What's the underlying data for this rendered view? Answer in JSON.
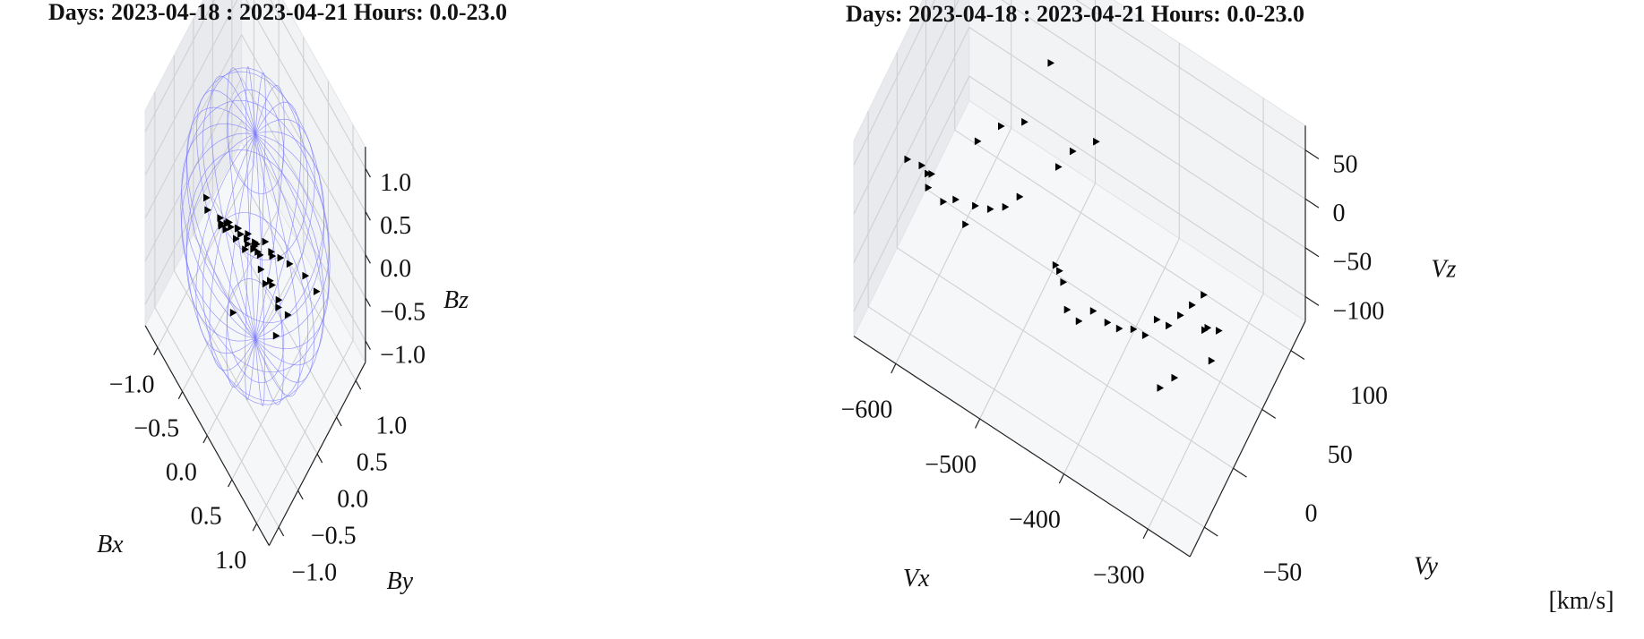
{
  "chart_data": [
    {
      "type": "scatter",
      "subtype": "3d-scatter",
      "title": "Days: 2023-04-18 : 2023-04-21 Hours: 0.0-23.0",
      "xlabel": "Bx",
      "ylabel": "By",
      "zlabel": "Bz",
      "xlim": [
        -1.2,
        1.2
      ],
      "ylim": [
        -1.2,
        1.2
      ],
      "zlim": [
        -1.2,
        1.2
      ],
      "xticks": [
        "−1.0",
        "−0.5",
        "0.0",
        "0.5",
        "1.0"
      ],
      "yticks": [
        "−1.0",
        "−0.5",
        "0.0",
        "0.5",
        "1.0"
      ],
      "zticks": [
        "−1.0",
        "−0.5",
        "0.0",
        "0.5",
        "1.0"
      ],
      "grid": true,
      "marker": "triangle-right",
      "marker_color": "#000000",
      "reference_sphere": {
        "radius": 1.0,
        "color": "#7a7aff"
      },
      "series": [
        {
          "points": [
            {
              "x": -0.05,
              "y": -0.55,
              "z": 0.52
            },
            {
              "x": 0.1,
              "y": -0.5,
              "z": 0.55
            },
            {
              "x": 0.3,
              "y": -0.4,
              "z": 0.58
            },
            {
              "x": 0.5,
              "y": -0.25,
              "z": 0.55
            },
            {
              "x": 0.7,
              "y": -0.05,
              "z": 0.45
            },
            {
              "x": 0.85,
              "y": 0.15,
              "z": 0.3
            },
            {
              "x": 0.95,
              "y": 0.3,
              "z": 0.1
            },
            {
              "x": -0.2,
              "y": -0.6,
              "z": 0.45
            },
            {
              "x": 0.2,
              "y": -0.45,
              "z": 0.5
            },
            {
              "x": 0.6,
              "y": -0.15,
              "z": 0.5
            },
            {
              "x": -0.45,
              "y": -0.3,
              "z": 0.0
            },
            {
              "x": -0.4,
              "y": -0.2,
              "z": -0.1
            },
            {
              "x": -0.3,
              "y": -0.1,
              "z": -0.25
            },
            {
              "x": -0.2,
              "y": 0.0,
              "z": -0.35
            },
            {
              "x": -0.1,
              "y": 0.1,
              "z": -0.3
            },
            {
              "x": -0.35,
              "y": -0.4,
              "z": 0.1
            },
            {
              "x": -0.25,
              "y": -0.35,
              "z": 0.2
            },
            {
              "x": -0.15,
              "y": -0.25,
              "z": 0.15
            },
            {
              "x": -0.05,
              "y": -0.15,
              "z": 0.05
            },
            {
              "x": 0.0,
              "y": -0.05,
              "z": -0.1
            },
            {
              "x": 0.05,
              "y": 0.05,
              "z": -0.2
            },
            {
              "x": -0.5,
              "y": -0.1,
              "z": -0.35
            },
            {
              "x": -0.55,
              "y": 0.05,
              "z": -0.45
            },
            {
              "x": -0.45,
              "y": 0.15,
              "z": -0.5
            },
            {
              "x": -0.3,
              "y": 0.2,
              "z": -0.45
            },
            {
              "x": 0.1,
              "y": -0.1,
              "z": 0.1
            },
            {
              "x": 0.2,
              "y": -0.2,
              "z": 0.2
            },
            {
              "x": 0.3,
              "y": -0.25,
              "z": 0.15
            },
            {
              "x": 0.35,
              "y": -0.2,
              "z": 0.0
            },
            {
              "x": 0.4,
              "y": -0.1,
              "z": -0.05
            },
            {
              "x": 0.15,
              "y": 0.05,
              "z": 0.05
            },
            {
              "x": 0.25,
              "y": 0.1,
              "z": -0.05
            },
            {
              "x": -0.6,
              "y": -0.45,
              "z": 0.2
            },
            {
              "x": -0.5,
              "y": -0.55,
              "z": 0.25
            },
            {
              "x": 0.45,
              "y": 0.0,
              "z": -0.25
            },
            {
              "x": 0.55,
              "y": 0.1,
              "z": -0.4
            },
            {
              "x": 0.05,
              "y": 0.3,
              "z": -0.7
            },
            {
              "x": 0.25,
              "y": 0.25,
              "z": -0.75
            },
            {
              "x": -0.2,
              "y": -0.3,
              "z": -0.8
            },
            {
              "x": 0.4,
              "y": 0.0,
              "z": -0.7
            }
          ]
        }
      ]
    },
    {
      "type": "scatter",
      "subtype": "3d-scatter",
      "title": "Days: 2023-04-18 : 2023-04-21 Hours: 0.0-23.0",
      "xlabel": "Vx",
      "ylabel": "Vy",
      "zlabel": "Vz",
      "unit_label": "[km/s]",
      "xlim": [
        -650,
        -280
      ],
      "ylim": [
        -70,
        150
      ],
      "zlim": [
        -110,
        70
      ],
      "xticks": [
        "−600",
        "−500",
        "−400",
        "−300"
      ],
      "yticks": [
        "−50",
        "0",
        "50",
        "100"
      ],
      "zticks": [
        "−100",
        "−50",
        "0",
        "50"
      ],
      "grid": true,
      "marker": "triangle-right",
      "marker_color": "#000000",
      "series": [
        {
          "points": [
            {
              "x": -620,
              "y": -20,
              "z": 20
            },
            {
              "x": -610,
              "y": -10,
              "z": 10
            },
            {
              "x": -605,
              "y": 0,
              "z": -5
            },
            {
              "x": -615,
              "y": 10,
              "z": -20
            },
            {
              "x": -600,
              "y": -15,
              "z": 0
            },
            {
              "x": -590,
              "y": 20,
              "z": -40
            },
            {
              "x": -580,
              "y": 40,
              "z": -60
            },
            {
              "x": -575,
              "y": 60,
              "z": -80
            },
            {
              "x": -570,
              "y": 80,
              "z": -95
            },
            {
              "x": -560,
              "y": 90,
              "z": -90
            },
            {
              "x": -595,
              "y": 5,
              "z": -30
            },
            {
              "x": -585,
              "y": 30,
              "z": -70
            },
            {
              "x": -480,
              "y": 20,
              "z": -40
            },
            {
              "x": -470,
              "y": 10,
              "z": -30
            },
            {
              "x": -460,
              "y": 0,
              "z": -25
            },
            {
              "x": -450,
              "y": -10,
              "z": -35
            },
            {
              "x": -440,
              "y": -5,
              "z": -45
            },
            {
              "x": -430,
              "y": 5,
              "z": -40
            },
            {
              "x": -420,
              "y": 15,
              "z": -55
            },
            {
              "x": -410,
              "y": 20,
              "z": -60
            },
            {
              "x": -400,
              "y": 30,
              "z": -65
            },
            {
              "x": -390,
              "y": 35,
              "z": -70
            },
            {
              "x": -380,
              "y": 40,
              "z": -55
            },
            {
              "x": -370,
              "y": 45,
              "z": -60
            },
            {
              "x": -360,
              "y": 50,
              "z": -50
            },
            {
              "x": -350,
              "y": 55,
              "z": -40
            },
            {
              "x": -340,
              "y": 60,
              "z": -30
            },
            {
              "x": -330,
              "y": 50,
              "z": -45
            },
            {
              "x": -320,
              "y": 40,
              "z": -60
            },
            {
              "x": -345,
              "y": 70,
              "z": -75
            },
            {
              "x": -335,
              "y": 80,
              "z": -80
            },
            {
              "x": -355,
              "y": 30,
              "z": -85
            },
            {
              "x": -365,
              "y": 20,
              "z": -90
            },
            {
              "x": -500,
              "y": 60,
              "z": 0
            },
            {
              "x": -490,
              "y": 70,
              "z": 10
            },
            {
              "x": -470,
              "y": 80,
              "z": 20
            },
            {
              "x": -560,
              "y": 10,
              "z": 40
            },
            {
              "x": -540,
              "y": 20,
              "z": 55
            },
            {
              "x": -520,
              "y": 30,
              "z": 60
            },
            {
              "x": -520,
              "y": 80,
              "z": 65
            }
          ]
        }
      ]
    }
  ]
}
